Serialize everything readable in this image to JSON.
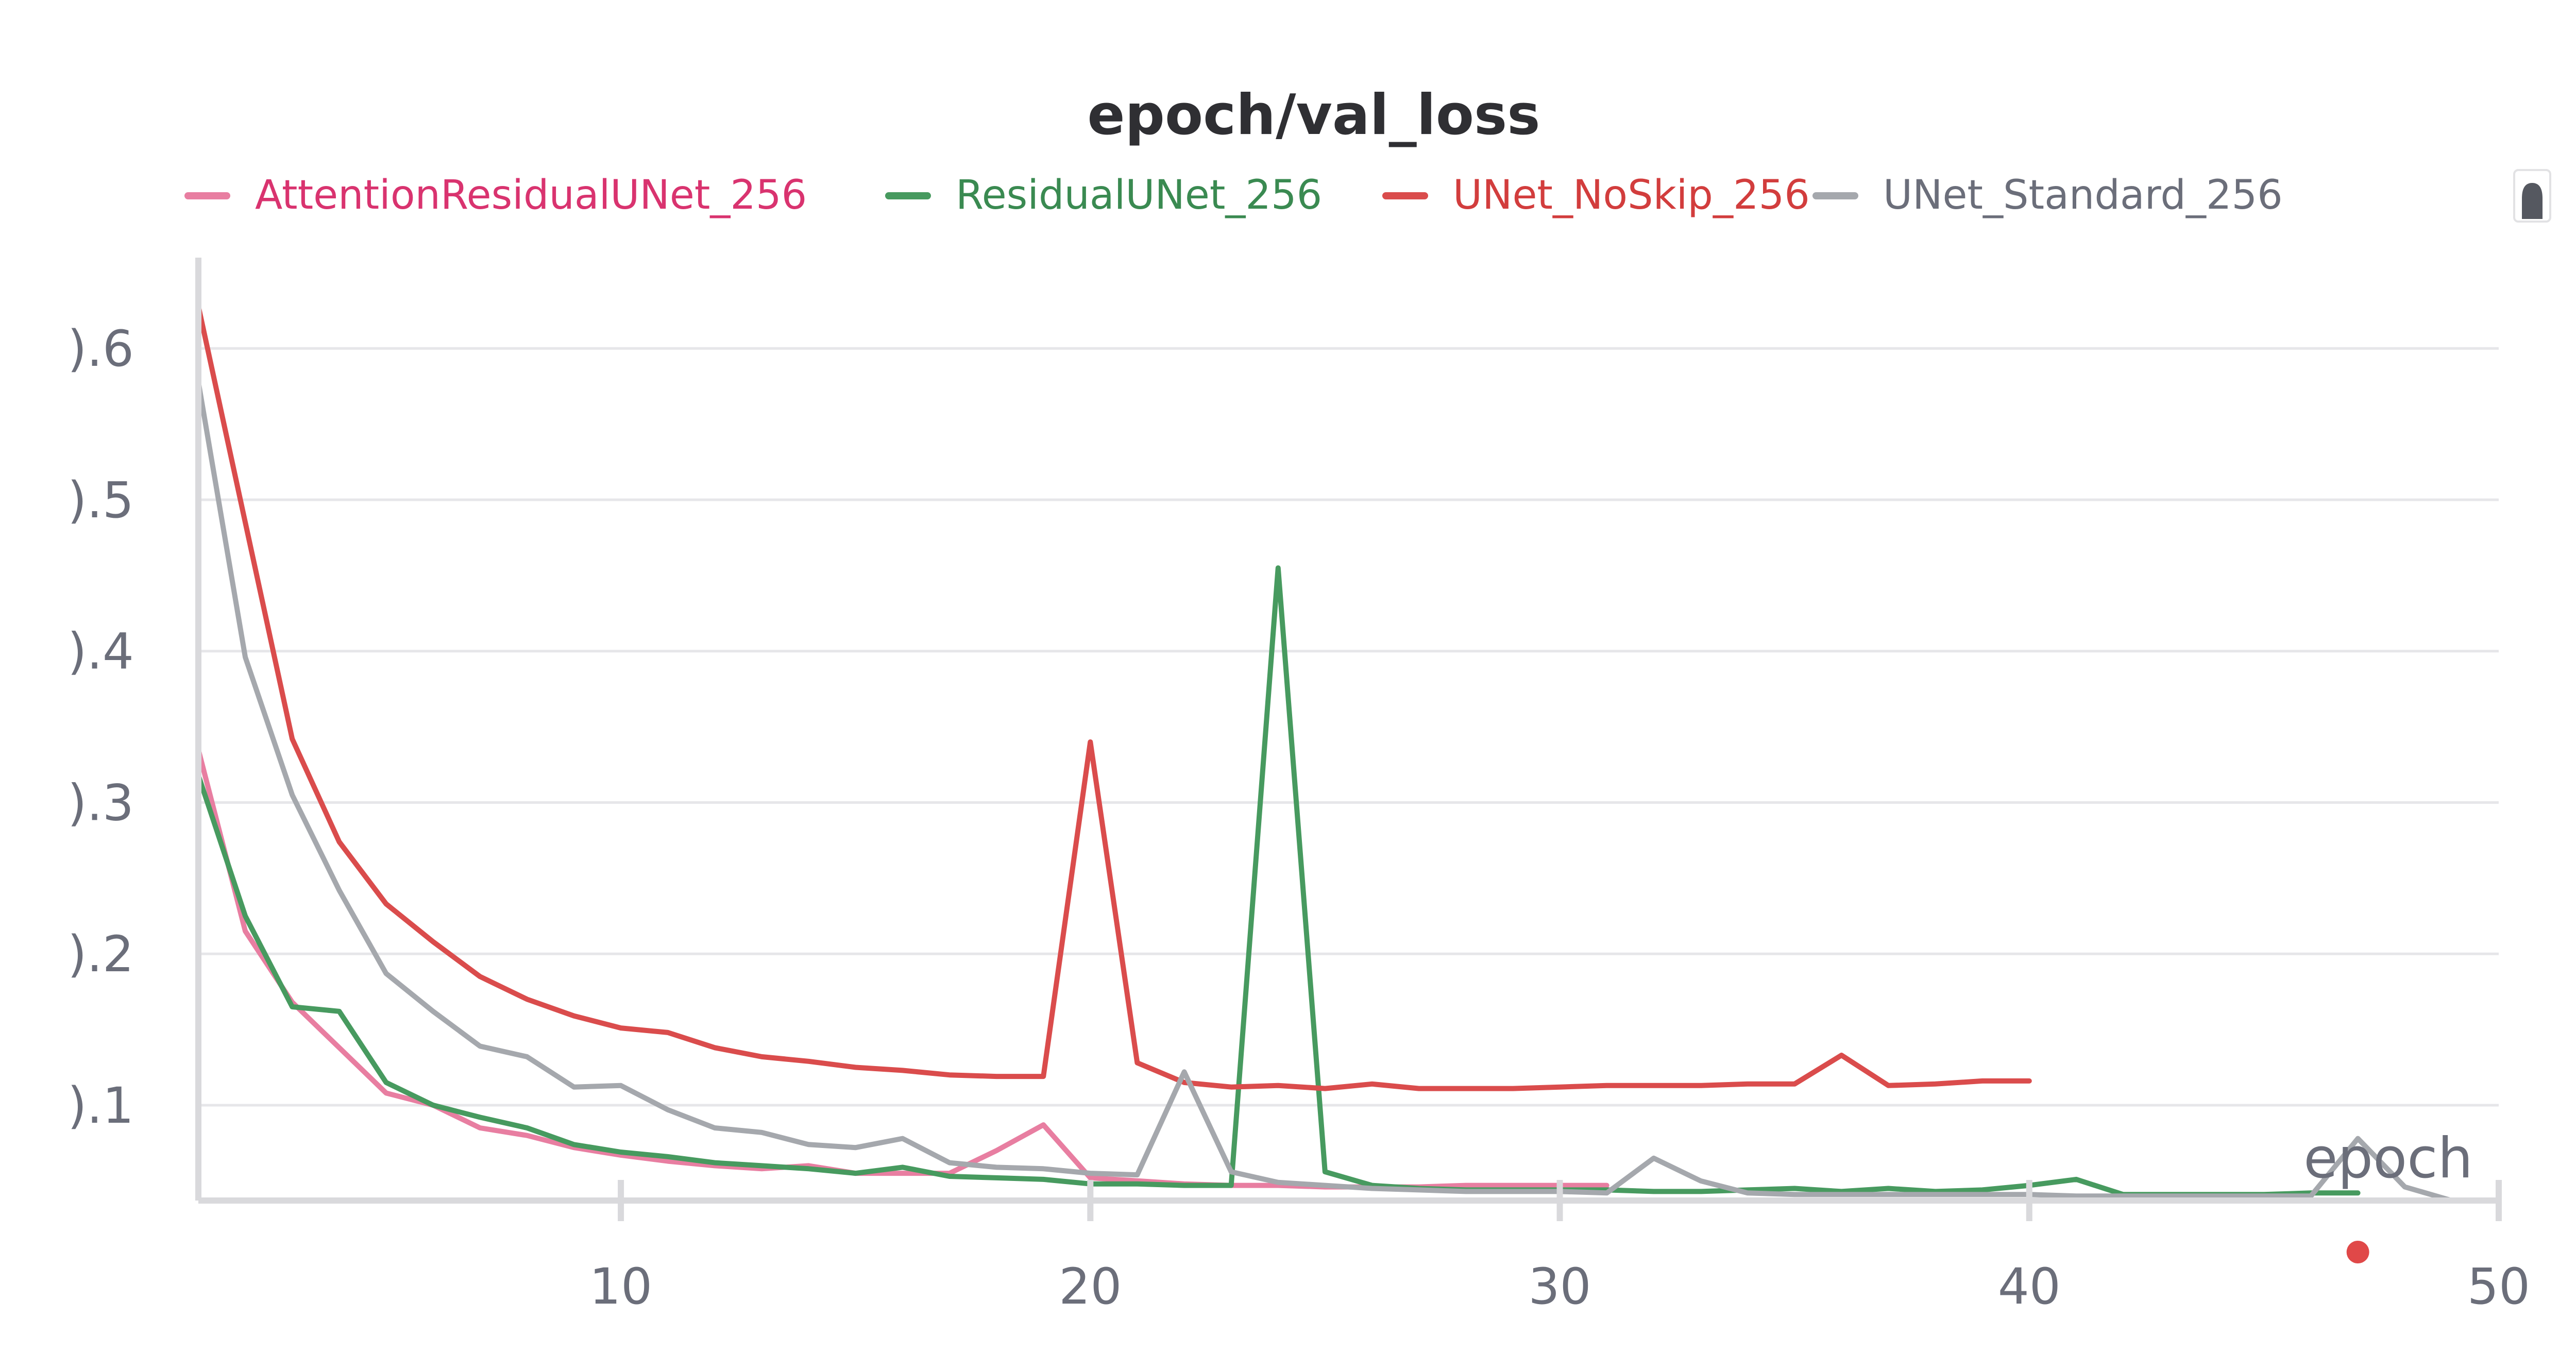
{
  "chart_data": {
    "type": "line",
    "title": "epoch/val_loss",
    "xlabel": "epoch",
    "ylabel": "",
    "xlim": [
      1,
      50
    ],
    "ylim": [
      0.037,
      0.66
    ],
    "x_ticks": [
      10,
      20,
      30,
      40,
      50
    ],
    "y_ticks": [
      0.1,
      0.2,
      0.3,
      0.4,
      0.5,
      0.6
    ],
    "y_tick_labels": [
      ").1",
      ").2",
      ").3",
      ").4",
      ").5",
      ").6"
    ],
    "grid": true,
    "legend_position": "top",
    "series": [
      {
        "name": "AttentionResidualUNet_256",
        "color": "#e87ea1",
        "text_color": "#d9336f",
        "x": [
          1,
          2,
          3,
          4,
          5,
          6,
          7,
          8,
          9,
          10,
          11,
          12,
          13,
          14,
          15,
          16,
          17,
          18,
          19,
          20,
          21,
          22,
          23,
          24,
          25,
          26,
          27,
          28,
          29,
          30,
          31
        ],
        "values": [
          0.335,
          0.215,
          0.168,
          0.138,
          0.108,
          0.1,
          0.085,
          0.08,
          0.072,
          0.067,
          0.063,
          0.06,
          0.058,
          0.06,
          0.055,
          0.055,
          0.055,
          0.07,
          0.087,
          0.052,
          0.05,
          0.048,
          0.047,
          0.047,
          0.046,
          0.046,
          0.046,
          0.047,
          0.047,
          0.047,
          0.047
        ]
      },
      {
        "name": "ResidualUNet_256",
        "color": "#479a5f",
        "text_color": "#3a8a51",
        "x": [
          1,
          2,
          3,
          4,
          5,
          6,
          7,
          8,
          9,
          10,
          11,
          12,
          13,
          14,
          15,
          16,
          17,
          18,
          19,
          20,
          21,
          22,
          23,
          24,
          25,
          26,
          27,
          28,
          29,
          30,
          31,
          32,
          33,
          34,
          35,
          36,
          37,
          38,
          39,
          40,
          41,
          42,
          43,
          44,
          45,
          46,
          47
        ],
        "values": [
          0.318,
          0.225,
          0.165,
          0.162,
          0.115,
          0.1,
          0.092,
          0.085,
          0.074,
          0.069,
          0.066,
          0.062,
          0.06,
          0.058,
          0.055,
          0.059,
          0.053,
          0.052,
          0.051,
          0.048,
          0.048,
          0.047,
          0.047,
          0.455,
          0.056,
          0.047,
          0.045,
          0.044,
          0.044,
          0.044,
          0.044,
          0.043,
          0.043,
          0.044,
          0.045,
          0.043,
          0.045,
          0.043,
          0.044,
          0.047,
          0.051,
          0.041,
          0.041,
          0.041,
          0.041,
          0.042,
          0.042
        ]
      },
      {
        "name": "UNet_NoSkip_256",
        "color": "#da4c4c",
        "text_color": "#d23d3d",
        "x": [
          1,
          2,
          3,
          4,
          5,
          6,
          7,
          8,
          9,
          10,
          11,
          12,
          13,
          14,
          15,
          16,
          17,
          18,
          19,
          20,
          21,
          22,
          23,
          24,
          25,
          26,
          27,
          28,
          29,
          30,
          31,
          32,
          33,
          34,
          35,
          36,
          37,
          38,
          39,
          40
        ],
        "values": [
          0.628,
          0.485,
          0.342,
          0.274,
          0.233,
          0.208,
          0.185,
          0.17,
          0.159,
          0.151,
          0.148,
          0.138,
          0.132,
          0.129,
          0.125,
          0.123,
          0.12,
          0.119,
          0.119,
          0.34,
          0.128,
          0.115,
          0.112,
          0.113,
          0.111,
          0.114,
          0.111,
          0.111,
          0.111,
          0.112,
          0.113,
          0.113,
          0.113,
          0.114,
          0.114,
          0.133,
          0.113,
          0.114,
          0.116,
          0.116
        ]
      },
      {
        "name": "UNet_Standard_256",
        "color": "#a5a8ad",
        "text_color": "#6b6e7a",
        "x": [
          1,
          2,
          3,
          4,
          5,
          6,
          7,
          8,
          9,
          10,
          11,
          12,
          13,
          14,
          15,
          16,
          17,
          18,
          19,
          20,
          21,
          22,
          23,
          24,
          25,
          26,
          27,
          28,
          29,
          30,
          31,
          32,
          33,
          34,
          35,
          36,
          37,
          38,
          39,
          40,
          41,
          42,
          43,
          44,
          45,
          46,
          47,
          48,
          49
        ],
        "values": [
          0.578,
          0.396,
          0.305,
          0.242,
          0.187,
          0.162,
          0.139,
          0.132,
          0.112,
          0.113,
          0.097,
          0.085,
          0.082,
          0.074,
          0.072,
          0.078,
          0.062,
          0.059,
          0.058,
          0.055,
          0.054,
          0.122,
          0.056,
          0.049,
          0.047,
          0.045,
          0.044,
          0.043,
          0.043,
          0.043,
          0.042,
          0.065,
          0.05,
          0.042,
          0.041,
          0.041,
          0.041,
          0.041,
          0.041,
          0.041,
          0.04,
          0.04,
          0.04,
          0.04,
          0.04,
          0.04,
          0.078,
          0.046,
          0.037
        ]
      }
    ],
    "marker": {
      "x": 47,
      "color": "#e04848"
    }
  },
  "controls": {
    "scroll_icon": "scroll-handle-icon"
  }
}
